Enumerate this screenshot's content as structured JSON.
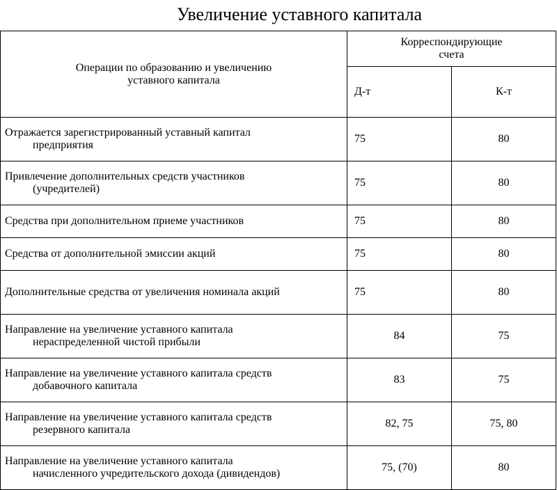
{
  "title": "Увеличение уставного капитала",
  "table": {
    "header": {
      "operations_line1": "Операции по образованию и увеличению",
      "operations_line2": "уставного капитала",
      "accounts_group": "Корреспондирующие",
      "accounts_group_line2": "счета",
      "debit": "Д-т",
      "credit": "К-т"
    },
    "rows": [
      {
        "op_line1": "Отражается зарегистрированный уставный капитал",
        "op_line2": "предприятия",
        "dt": "75",
        "kt": "80",
        "dt_align": "left",
        "tall": true
      },
      {
        "op_line1": "Привлечение дополнительных средств участников",
        "op_line2": "(учредителей)",
        "dt": "75",
        "kt": "80",
        "dt_align": "left",
        "tall": true
      },
      {
        "op_line1": "Средства при дополнительном приеме участников",
        "op_line2": "",
        "dt": "75",
        "kt": "80",
        "dt_align": "left",
        "tall": false
      },
      {
        "op_line1": "Средства от дополнительной эмиссии акций",
        "op_line2": "",
        "dt": "75",
        "kt": "80",
        "dt_align": "left",
        "tall": false
      },
      {
        "op_line1": "Дополнительные средства от увеличения номинала акций",
        "op_line2": "",
        "dt": "75",
        "kt": "80",
        "dt_align": "left",
        "tall": true
      },
      {
        "op_line1": "Направление на увеличение уставного капитала",
        "op_line2": "нераспределенной чистой прибыли",
        "dt": "84",
        "kt": "75",
        "dt_align": "center",
        "tall": true
      },
      {
        "op_line1": "Направление на увеличение уставного капитала средств",
        "op_line2": "добавочного капитала",
        "dt": "83",
        "kt": "75",
        "dt_align": "center",
        "tall": true
      },
      {
        "op_line1": "Направление на увеличение уставного капитала средств",
        "op_line2": "резервного капитала",
        "dt": "82, 75",
        "kt": "75, 80",
        "dt_align": "center",
        "tall": true
      },
      {
        "op_line1": "Направление на увеличение уставного капитала",
        "op_line2": "начисленного учредительского дохода  (дивидендов)",
        "dt": "75, (70)",
        "kt": "80",
        "dt_align": "center",
        "tall": true
      }
    ]
  }
}
